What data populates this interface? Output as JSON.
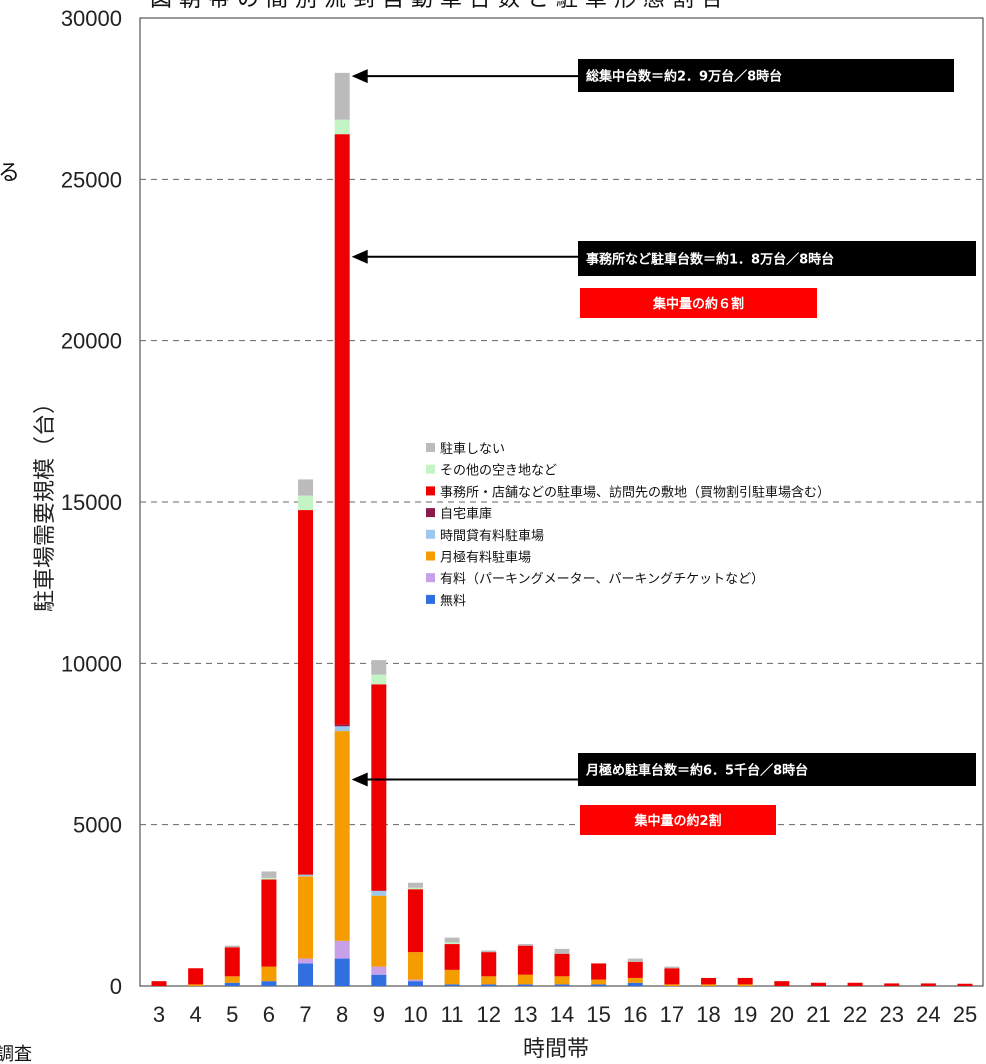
{
  "chart_data": {
    "type": "bar",
    "stacked": true,
    "title": "",
    "xlabel": "時間帯",
    "ylabel": "駐車場需要規模（台）",
    "ylim": [
      0,
      30000
    ],
    "yticks": [
      0,
      5000,
      10000,
      15000,
      20000,
      25000,
      30000
    ],
    "grid": "horizontal-dashed",
    "legend_position": "center-right",
    "categories": [
      "3",
      "4",
      "5",
      "6",
      "7",
      "8",
      "9",
      "10",
      "11",
      "12",
      "13",
      "14",
      "15",
      "16",
      "17",
      "18",
      "19",
      "20",
      "21",
      "22",
      "23",
      "24",
      "25"
    ],
    "series": [
      {
        "name": "無料",
        "color": "#2f6fe0",
        "values": [
          0,
          0,
          100,
          150,
          700,
          850,
          350,
          150,
          50,
          50,
          50,
          50,
          50,
          100,
          0,
          0,
          0,
          0,
          0,
          0,
          0,
          0,
          0
        ]
      },
      {
        "name": "有料（パーキングメーター、パーキングチケットなど）",
        "color": "#c8a0e8",
        "values": [
          0,
          0,
          0,
          0,
          150,
          550,
          250,
          50,
          0,
          0,
          0,
          0,
          0,
          0,
          0,
          0,
          0,
          0,
          0,
          0,
          0,
          0,
          0
        ]
      },
      {
        "name": "月極有料駐車場",
        "color": "#f59c00",
        "values": [
          0,
          50,
          200,
          450,
          2550,
          6500,
          2200,
          850,
          450,
          250,
          300,
          250,
          150,
          150,
          50,
          50,
          50,
          0,
          0,
          0,
          0,
          0,
          0
        ]
      },
      {
        "name": "時間貸有料駐車場",
        "color": "#9cc8ee",
        "values": [
          0,
          0,
          0,
          0,
          50,
          150,
          150,
          0,
          0,
          0,
          0,
          0,
          0,
          0,
          0,
          0,
          0,
          0,
          0,
          0,
          0,
          0,
          0
        ]
      },
      {
        "name": "自宅車庫",
        "color": "#8b1a4a",
        "values": [
          0,
          0,
          0,
          0,
          0,
          50,
          0,
          0,
          0,
          0,
          0,
          0,
          0,
          0,
          0,
          0,
          0,
          0,
          0,
          0,
          0,
          0,
          0
        ]
      },
      {
        "name": "事務所・店舗などの駐車場、訪問先の敷地（買物割引駐車場含む）",
        "color": "#ee0000",
        "values": [
          150,
          500,
          900,
          2700,
          11300,
          18300,
          6400,
          1950,
          800,
          750,
          900,
          700,
          500,
          500,
          500,
          200,
          200,
          150,
          100,
          100,
          80,
          80,
          70
        ]
      },
      {
        "name": "その他の空き地など",
        "color": "#c4f3c4",
        "values": [
          0,
          0,
          0,
          50,
          450,
          450,
          300,
          50,
          50,
          0,
          0,
          0,
          0,
          0,
          0,
          0,
          0,
          0,
          0,
          0,
          0,
          0,
          0
        ]
      },
      {
        "name": "駐車しない",
        "color": "#bbbbbb",
        "values": [
          0,
          0,
          50,
          200,
          500,
          1450,
          450,
          150,
          150,
          50,
          50,
          150,
          0,
          100,
          50,
          0,
          0,
          0,
          0,
          0,
          0,
          0,
          0
        ]
      }
    ],
    "annotations": [
      {
        "id": "total",
        "text": "総集中台数＝約2．9万台／8時台",
        "category": "8",
        "value": 28200
      },
      {
        "id": "office",
        "text": "事務所など駐車台数＝約1．8万台／8時台",
        "category": "8",
        "value": 22600,
        "badge": "集中量の約６割"
      },
      {
        "id": "monthly",
        "text": "月極め駐車台数＝約6．5千台／8時台",
        "category": "8",
        "value": 6400,
        "badge": "集中量の約2割"
      }
    ]
  },
  "partial_text": {
    "title": "図 朝 帯 の 間 別 流 到 自 動 車 台 数 と 駐 車 形 態 割 合",
    "left_edge": "る",
    "bottom_left": "調査"
  }
}
